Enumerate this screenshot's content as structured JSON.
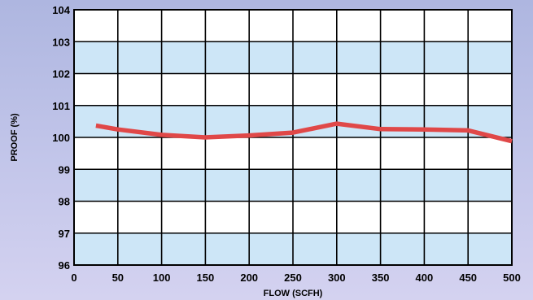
{
  "chart_data": {
    "type": "line",
    "xlabel": "FLOW (SCFH)",
    "ylabel": "PROOF (%)",
    "xlim": [
      0,
      500
    ],
    "ylim": [
      96,
      104
    ],
    "xticks": [
      "0",
      "50",
      "100",
      "150",
      "200",
      "250",
      "300",
      "350",
      "400",
      "450",
      "500"
    ],
    "yticks": [
      "96",
      "97",
      "98",
      "99",
      "100",
      "101",
      "102",
      "103",
      "104"
    ],
    "grid": true,
    "band_colors": [
      "#ffffff",
      "#cde6f7"
    ],
    "series": [
      {
        "color": "#e04848",
        "x": [
          25,
          50,
          100,
          150,
          200,
          250,
          300,
          350,
          400,
          450,
          500
        ],
        "y": [
          100.37,
          100.25,
          100.08,
          100.0,
          100.06,
          100.15,
          100.43,
          100.26,
          100.25,
          100.22,
          99.88
        ]
      }
    ]
  }
}
